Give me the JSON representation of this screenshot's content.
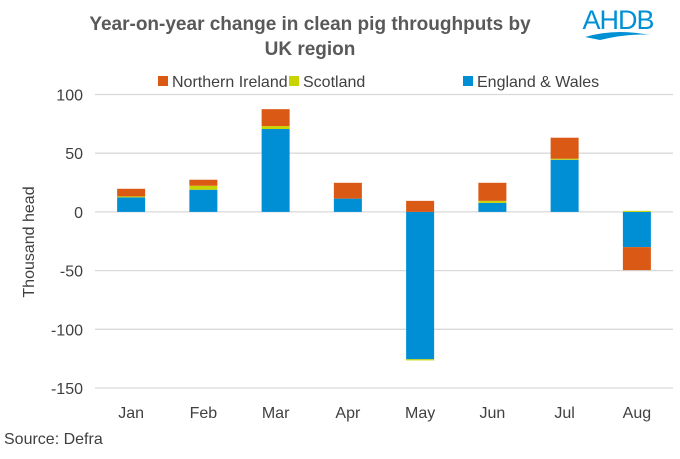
{
  "logo_text": "AHDB",
  "source": "Source: Defra",
  "chart_data": {
    "type": "bar",
    "stacked": true,
    "title_lines": [
      "Year-on-year change in clean pig throughputs by",
      "UK region"
    ],
    "xlabel": "",
    "ylabel": "Thousand head",
    "ylim": [
      -150,
      100
    ],
    "yticks": [
      100,
      50,
      0,
      -50,
      -100,
      -150
    ],
    "grid": true,
    "legend_position": "top",
    "categories": [
      "Jan",
      "Feb",
      "Mar",
      "Apr",
      "May",
      "Jun",
      "Jul",
      "Aug"
    ],
    "series": [
      {
        "name": "England & Wales",
        "color": "#008fd5",
        "values": [
          12.4,
          18.9,
          70.6,
          11.3,
          -125.5,
          7.7,
          44.4,
          -30.0
        ]
      },
      {
        "name": "Scotland",
        "color": "#c8d400",
        "values": [
          0.8,
          3.4,
          2.5,
          0.0,
          -1.0,
          1.7,
          0.9,
          0.9
        ]
      },
      {
        "name": "Northern Ireland",
        "color": "#da5915",
        "values": [
          6.5,
          5.1,
          14.4,
          13.5,
          9.4,
          15.4,
          17.9,
          -19.6
        ]
      }
    ],
    "legend_order": [
      2,
      1,
      0
    ]
  }
}
